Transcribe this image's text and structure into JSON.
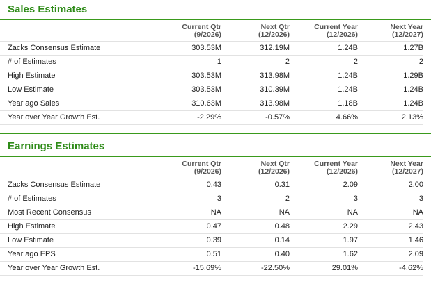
{
  "sales": {
    "title": "Sales Estimates",
    "columns": [
      {
        "name": "Current Qtr",
        "period": "(9/2026)"
      },
      {
        "name": "Next Qtr",
        "period": "(12/2026)"
      },
      {
        "name": "Current Year",
        "period": "(12/2026)"
      },
      {
        "name": "Next Year",
        "period": "(12/2027)"
      }
    ],
    "rows": [
      {
        "label": "Zacks Consensus Estimate",
        "values": [
          "303.53M",
          "312.19M",
          "1.24B",
          "1.27B"
        ]
      },
      {
        "label": "# of Estimates",
        "values": [
          "1",
          "2",
          "2",
          "2"
        ]
      },
      {
        "label": "High Estimate",
        "values": [
          "303.53M",
          "313.98M",
          "1.24B",
          "1.29B"
        ]
      },
      {
        "label": "Low Estimate",
        "values": [
          "303.53M",
          "310.39M",
          "1.24B",
          "1.24B"
        ]
      },
      {
        "label": "Year ago Sales",
        "values": [
          "310.63M",
          "313.98M",
          "1.18B",
          "1.24B"
        ]
      },
      {
        "label": "Year over Year Growth Est.",
        "values": [
          "-2.29%",
          "-0.57%",
          "4.66%",
          "2.13%"
        ]
      }
    ]
  },
  "earnings": {
    "title": "Earnings Estimates",
    "columns": [
      {
        "name": "Current Qtr",
        "period": "(9/2026)"
      },
      {
        "name": "Next Qtr",
        "period": "(12/2026)"
      },
      {
        "name": "Current Year",
        "period": "(12/2026)"
      },
      {
        "name": "Next Year",
        "period": "(12/2027)"
      }
    ],
    "rows": [
      {
        "label": "Zacks Consensus Estimate",
        "values": [
          "0.43",
          "0.31",
          "2.09",
          "2.00"
        ]
      },
      {
        "label": "# of Estimates",
        "values": [
          "3",
          "2",
          "3",
          "3"
        ]
      },
      {
        "label": "Most Recent Consensus",
        "values": [
          "NA",
          "NA",
          "NA",
          "NA"
        ]
      },
      {
        "label": "High Estimate",
        "values": [
          "0.47",
          "0.48",
          "2.29",
          "2.43"
        ]
      },
      {
        "label": "Low Estimate",
        "values": [
          "0.39",
          "0.14",
          "1.97",
          "1.46"
        ]
      },
      {
        "label": "Year ago EPS",
        "values": [
          "0.51",
          "0.40",
          "1.62",
          "2.09"
        ]
      },
      {
        "label": "Year over Year Growth Est.",
        "values": [
          "-15.69%",
          "-22.50%",
          "29.01%",
          "-4.62%"
        ]
      }
    ]
  },
  "colors": {
    "title_green": "#2e8b18",
    "rule_green": "#3a9a1c",
    "row_border": "#e2e2e2"
  }
}
